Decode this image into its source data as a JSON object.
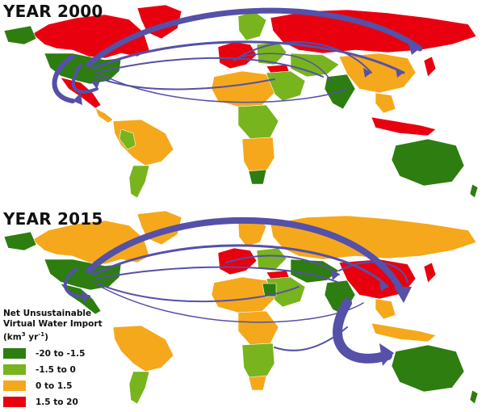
{
  "panels": [
    {
      "title": "YEAR 2000"
    },
    {
      "title": "YEAR 2015"
    }
  ],
  "legend": {
    "title_line1": "Net Unsustainable",
    "title_line2": "Virtual Water Import",
    "unit_prefix": "(km",
    "unit_sup1": "3",
    "unit_mid": " yr",
    "unit_sup2": "-1",
    "unit_suffix": ")",
    "items": [
      {
        "label": "-20 to -1.5",
        "color": "#2e7d10"
      },
      {
        "label": "-1.5 to 0",
        "color": "#78b41e"
      },
      {
        "label": "0 to 1.5",
        "color": "#f5a81c"
      },
      {
        "label": "1.5 to 20",
        "color": "#e8000f"
      }
    ]
  },
  "arrow_color": "#5550a8"
}
